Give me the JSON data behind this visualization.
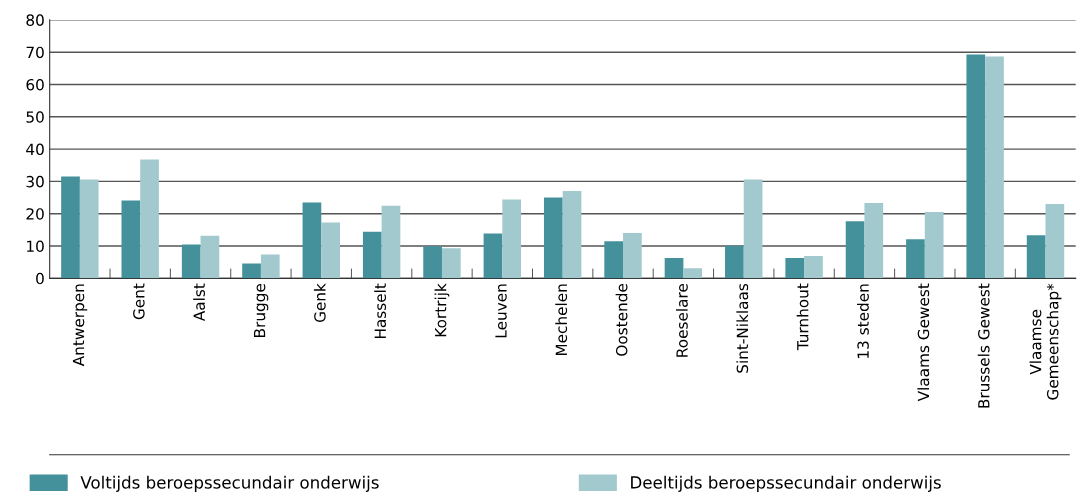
{
  "chart_data": {
    "type": "bar",
    "categories": [
      "Antwerpen",
      "Gent",
      "Aalst",
      "Brugge",
      "Genk",
      "Hasselt",
      "Kortrijk",
      "Leuven",
      "Mechelen",
      "Oostende",
      "Roeselare",
      "Sint-Niklaas",
      "Turnhout",
      "13 steden",
      "Vlaams Gewest",
      "Brussels Gewest",
      "Vlaamse\nGemeenschap*"
    ],
    "series": [
      {
        "name": "Voltijds beroepssecundair onderwijs",
        "color": "#44919b",
        "values": [
          31.5,
          24.1,
          10.5,
          4.6,
          23.5,
          14.4,
          9.9,
          13.9,
          25.0,
          11.5,
          6.3,
          10.1,
          6.3,
          17.7,
          12.1,
          69.3,
          13.3
        ]
      },
      {
        "name": "Deeltijds beroepssecundair onderwijs",
        "color": "#a2c9cd",
        "values": [
          30.6,
          36.8,
          13.2,
          7.4,
          17.3,
          22.5,
          9.3,
          24.4,
          27.0,
          14.0,
          3.1,
          30.6,
          6.9,
          23.3,
          20.5,
          68.7,
          23.0
        ]
      }
    ],
    "ylim": [
      0,
      80
    ],
    "yticks": [
      0,
      10,
      20,
      30,
      40,
      50,
      60,
      70,
      80
    ],
    "grid": "y",
    "legend": "bottom"
  }
}
